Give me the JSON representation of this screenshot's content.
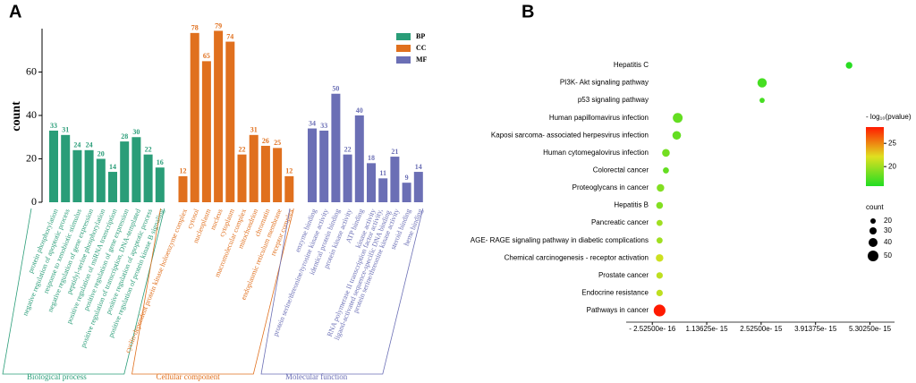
{
  "chart_data": [
    {
      "type": "bar",
      "panel": "A",
      "ylabel": "count",
      "ylim": [
        0,
        80
      ],
      "yticks": [
        0,
        20,
        40,
        60
      ],
      "series": [
        {
          "name": "BP",
          "group_label": "Biological process",
          "color": "#2a9d78",
          "categories": [
            "protein phosphorylation",
            "negative regulation of apoptotic process",
            "response to xenobiotic stimulus",
            "negative regulation of gene expression",
            "peptidyl-serine phosphorylation",
            "positive regulation of miRNA transcription",
            "positive regulation of gene expression",
            "positive regulation of transcription, DNA-templated",
            "positive regulation of apoptotic process",
            "positive regulation of protein kinase B signaling"
          ],
          "values": [
            33,
            31,
            24,
            24,
            20,
            14,
            28,
            30,
            22,
            16
          ]
        },
        {
          "name": "CC",
          "group_label": "Cellular component",
          "color": "#e0701e",
          "categories": [
            "cyclin-dependent protein kinase holoenzyme complex",
            "cytosol",
            "nucleoplasm",
            "nucleus",
            "cytoplasm",
            "macromolecular complex",
            "mitochondrion",
            "chromatin",
            "endoplasmic reticulum membrane",
            "receptor complex"
          ],
          "values": [
            12,
            78,
            65,
            79,
            74,
            22,
            31,
            26,
            25,
            12
          ]
        },
        {
          "name": "MF",
          "group_label": "Molecular function",
          "color": "#6b6fb5",
          "categories": [
            "enzyme binding",
            "protein serine/threonine/tyrosine kinase activity",
            "identical protein binding",
            "protein kinase activity",
            "ATP binding",
            "kinase activity",
            "RNA polymerase II transcription factor activity, ligand-activated sequence-specific DNA binding",
            "protein serine/threonine kinase activity",
            "steroid binding",
            "heme binding"
          ],
          "values": [
            34,
            33,
            50,
            22,
            40,
            18,
            11,
            21,
            9,
            14
          ]
        }
      ]
    },
    {
      "type": "scatter",
      "panel": "B",
      "categories": [
        "Hepatitis C",
        "PI3K- Akt signaling pathway",
        "p53 signaling pathway",
        "Human papillomavirus infection",
        "Kaposi sarcoma- associated herpesvirus infection",
        "Human cytomegalovirus infection",
        "Colorectal cancer",
        "Proteoglycans in cancer",
        "Hepatitis B",
        "Pancreatic cancer",
        "AGE- RAGE signaling pathway in diabetic complications",
        "Chemical carcinogenesis -  receptor activation",
        "Prostate cancer",
        "Endocrine resistance",
        "Pathways in cancer"
      ],
      "values": [
        4.77e-15,
        2.55e-15,
        2.55e-15,
        3.96e-16,
        3.7e-16,
        9.5e-17,
        9.5e-17,
        -4.4e-17,
        -6.7e-17,
        -6.7e-17,
        -6.7e-17,
        -6.7e-17,
        -6.7e-17,
        -6.7e-17,
        -6.7e-17
      ],
      "neglog_pvalue": [
        16,
        17,
        17,
        18,
        18,
        18.5,
        18,
        19,
        19,
        20,
        20,
        21.5,
        21,
        21,
        28.5
      ],
      "count": [
        27,
        42,
        19,
        45,
        38,
        33,
        24,
        32,
        28,
        24,
        24,
        32,
        26,
        26,
        56
      ],
      "xlim": [
        -9.2e-16,
        5.93e-15
      ],
      "xticks": [
        {
          "value": -2.525e-16,
          "label": "- 2.52500e- 16"
        },
        {
          "value": 1.13625e-15,
          "label": "1.13625e- 15"
        },
        {
          "value": 2.525e-15,
          "label": "2.52500e- 15"
        },
        {
          "value": 3.91375e-15,
          "label": "3.91375e- 15"
        },
        {
          "value": 5.3025e-15,
          "label": "5.30250e- 15"
        }
      ],
      "colorbar": {
        "title": "- log₁₀(pvalue)",
        "lim": [
          15.8,
          28.5
        ],
        "ticks": [
          20,
          25
        ],
        "colors": [
          "#22dd22",
          "#e0e020",
          "#ff1a00"
        ]
      },
      "size_legend": {
        "title": "count",
        "values": [
          20,
          30,
          40,
          50
        ]
      }
    }
  ]
}
